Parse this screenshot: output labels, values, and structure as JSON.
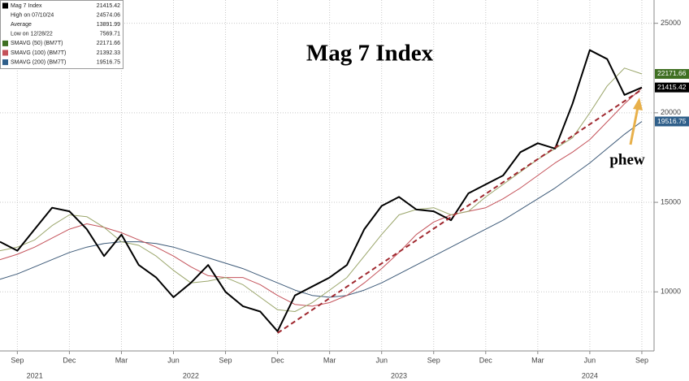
{
  "chart_data": {
    "type": "line",
    "title": "Mag 7 Index",
    "x": [
      "2021-08",
      "2021-09",
      "2021-10",
      "2021-11",
      "2021-12",
      "2022-01",
      "2022-02",
      "2022-03",
      "2022-04",
      "2022-05",
      "2022-06",
      "2022-07",
      "2022-08",
      "2022-09",
      "2022-10",
      "2022-11",
      "2022-12",
      "2023-01",
      "2023-02",
      "2023-03",
      "2023-04",
      "2023-05",
      "2023-06",
      "2023-07",
      "2023-08",
      "2023-09",
      "2023-10",
      "2023-11",
      "2023-12",
      "2024-01",
      "2024-02",
      "2024-03",
      "2024-04",
      "2024-05",
      "2024-06",
      "2024-07",
      "2024-08",
      "2024-09"
    ],
    "series": [
      {
        "name": "Mag 7 Index",
        "color": "#000000",
        "box_color": "#000000",
        "width": 2,
        "values": [
          12800,
          12300,
          13500,
          14700,
          14500,
          13500,
          12000,
          13200,
          11500,
          10800,
          9700,
          10500,
          11500,
          10000,
          9200,
          8900,
          7800,
          9800,
          10300,
          10800,
          11500,
          13500,
          14800,
          15300,
          14600,
          14500,
          14000,
          15500,
          16000,
          16500,
          17800,
          18300,
          18000,
          20500,
          23500,
          23000,
          21000,
          21415.42
        ]
      },
      {
        "name": "SMAVG (50) (BM7T)",
        "color": "#9aa56a",
        "box_color": "#3f6f22",
        "width": 1,
        "values": [
          12300,
          12500,
          12900,
          13700,
          14300,
          14200,
          13600,
          12800,
          12600,
          12000,
          11200,
          10500,
          10600,
          10800,
          10400,
          9700,
          9000,
          8900,
          9400,
          10100,
          10800,
          12000,
          13200,
          14300,
          14600,
          14700,
          14300,
          14500,
          15300,
          16000,
          16700,
          17400,
          18000,
          18600,
          20000,
          21500,
          22500,
          22171.66
        ]
      },
      {
        "name": "SMAVG (100) (BM7T)",
        "color": "#c4525a",
        "box_color": "#c4525a",
        "width": 1,
        "values": [
          11800,
          12100,
          12500,
          13000,
          13500,
          13800,
          13600,
          13300,
          12900,
          12500,
          12000,
          11400,
          10900,
          10800,
          10800,
          10400,
          9800,
          9300,
          9200,
          9400,
          9800,
          10500,
          11300,
          12200,
          13200,
          13900,
          14300,
          14500,
          14700,
          15200,
          15800,
          16500,
          17200,
          17800,
          18500,
          19500,
          20500,
          21392.33
        ]
      },
      {
        "name": "SMAVG (200) (BM7T)",
        "color": "#3d5a78",
        "box_color": "#2f5f8a",
        "width": 1,
        "values": [
          10700,
          11000,
          11400,
          11800,
          12200,
          12500,
          12700,
          12800,
          12800,
          12700,
          12500,
          12200,
          11900,
          11600,
          11300,
          10900,
          10500,
          10100,
          9800,
          9700,
          9800,
          10100,
          10500,
          11000,
          11500,
          12000,
          12500,
          13000,
          13500,
          14000,
          14600,
          15200,
          15800,
          16500,
          17200,
          18000,
          18800,
          19516.75
        ]
      }
    ],
    "stats": [
      {
        "name": "High on 07/10/24",
        "value": 24574.06
      },
      {
        "name": "Average",
        "value": 13891.99
      },
      {
        "name": "Low on 12/28/22",
        "value": 7569.71
      }
    ],
    "trendline": {
      "x": [
        "2022-12",
        "2024-09"
      ],
      "values": [
        7700,
        21300
      ],
      "color": "#a0282f"
    },
    "annotation": "phew",
    "ylim": [
      6700,
      26300
    ],
    "yticks": [
      10000,
      15000,
      20000,
      25000
    ],
    "xticks": [
      {
        "value": "2021-09",
        "label": "Sep"
      },
      {
        "value": "2021-12",
        "label": "Dec"
      },
      {
        "value": "2022-03",
        "label": "Mar"
      },
      {
        "value": "2022-06",
        "label": "Jun"
      },
      {
        "value": "2022-09",
        "label": "Sep"
      },
      {
        "value": "2022-12",
        "label": "Dec"
      },
      {
        "value": "2023-03",
        "label": "Mar"
      },
      {
        "value": "2023-06",
        "label": "Jun"
      },
      {
        "value": "2023-09",
        "label": "Sep"
      },
      {
        "value": "2023-12",
        "label": "Dec"
      },
      {
        "value": "2024-03",
        "label": "Mar"
      },
      {
        "value": "2024-06",
        "label": "Jun"
      },
      {
        "value": "2024-09",
        "label": "Sep"
      }
    ],
    "year_ticks": [
      {
        "value": "2021-10",
        "label": "2021"
      },
      {
        "value": "2022-07",
        "label": "2022"
      },
      {
        "value": "2023-07",
        "label": "2023"
      },
      {
        "value": "2024-06",
        "label": "2024"
      }
    ],
    "grid": true
  }
}
